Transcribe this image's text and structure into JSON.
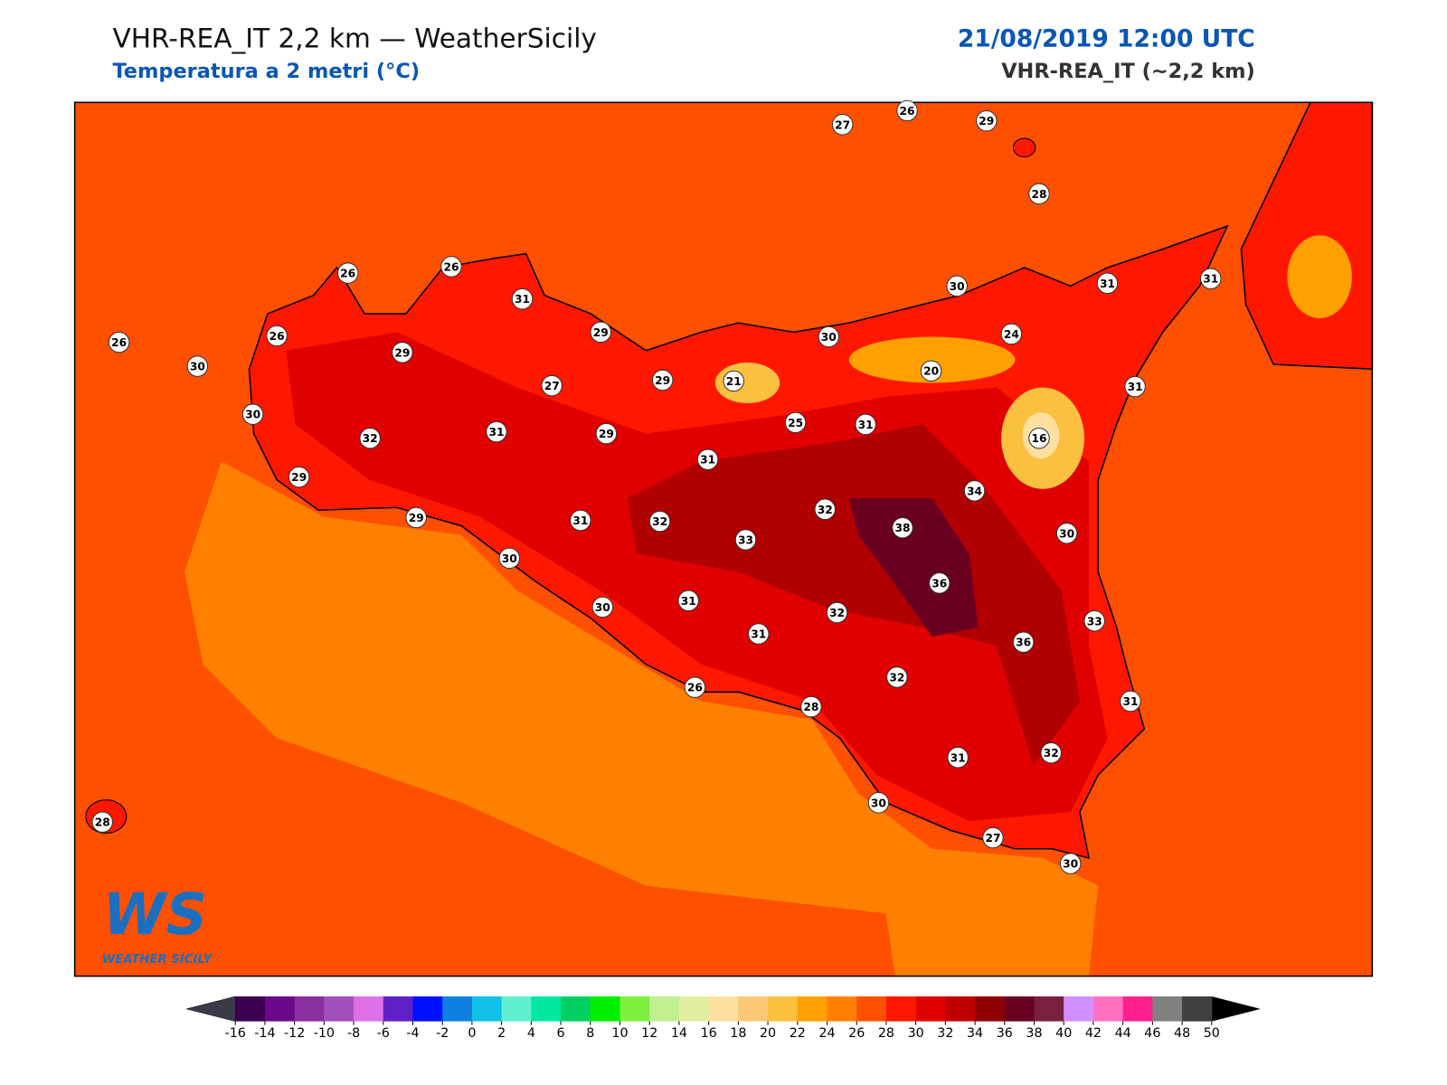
{
  "header": {
    "title": "VHR-REA_IT 2,2 km — WeatherSicily",
    "subtitle": "Temperatura a 2 metri (°C)",
    "datetime": "21/08/2019 12:00 UTC",
    "model": "VHR-REA_IT (~2,2 km)"
  },
  "logo": {
    "mark": "WS",
    "name": "WEATHER SICILY"
  },
  "map": {
    "labels": [
      27,
      26,
      29,
      28,
      26,
      26,
      31,
      30,
      31,
      31,
      26,
      26,
      30,
      29,
      29,
      30,
      24,
      27,
      29,
      21,
      20,
      31,
      30,
      25,
      31,
      16,
      32,
      31,
      29,
      31,
      29,
      34,
      32,
      29,
      31,
      32,
      38,
      33,
      30,
      30,
      36,
      30,
      31,
      32,
      33,
      31,
      36,
      32,
      26,
      28,
      31,
      32,
      31,
      30,
      27,
      30,
      28
    ]
  },
  "colorbar": {
    "ticks": [
      -16,
      -14,
      -12,
      -10,
      -8,
      -6,
      -4,
      -2,
      0,
      2,
      4,
      6,
      8,
      10,
      12,
      14,
      16,
      18,
      20,
      22,
      24,
      26,
      28,
      30,
      32,
      34,
      36,
      38,
      40,
      42,
      44,
      46,
      48,
      50
    ],
    "colors": [
      "#3b0050",
      "#6a0a8a",
      "#8a2fa0",
      "#a050b8",
      "#e070e8",
      "#6020c8",
      "#0010ff",
      "#1080e0",
      "#10c0e8",
      "#60f0d0",
      "#00e8a0",
      "#00d060",
      "#00f000",
      "#80f040",
      "#c0f090",
      "#e0f0a0",
      "#ffe0a0",
      "#fcc878",
      "#fcc040",
      "#ffa000",
      "#ff8000",
      "#ff5000",
      "#ff1800",
      "#e00000",
      "#c00000",
      "#900000",
      "#6a0020",
      "#7a2040",
      "#d090ff",
      "#ff70c0",
      "#ff2090",
      "#808080",
      "#404040"
    ],
    "under_color": "#3a3a4a",
    "over_color": "#000000"
  }
}
